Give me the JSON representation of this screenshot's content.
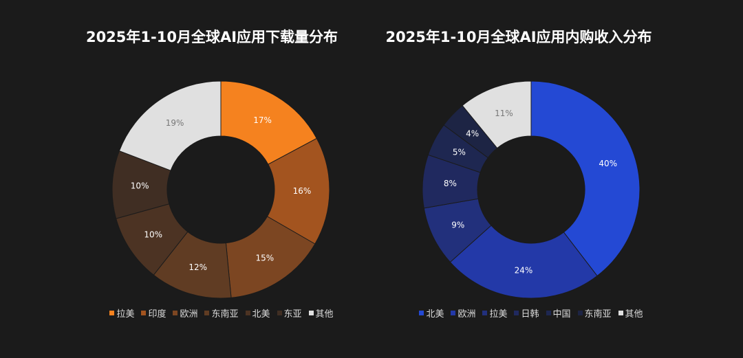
{
  "chart_data": [
    {
      "type": "pie",
      "title": "2025年1-10月全球AI应用下载量分布",
      "categories": [
        "拉美",
        "印度",
        "欧洲",
        "东南亚",
        "北美",
        "东亚",
        "其他"
      ],
      "values": [
        17,
        16,
        15,
        12,
        10,
        10,
        19
      ],
      "labels": [
        "17%",
        "16%",
        "15%",
        "12%",
        "10%",
        "10%",
        "19%"
      ],
      "colors": [
        "#F5821F",
        "#A3541F",
        "#7C4622",
        "#603C23",
        "#4C3323",
        "#402E23",
        "#E0E0E0"
      ],
      "label_colors": [
        "#fff",
        "#fff",
        "#fff",
        "#fff",
        "#fff",
        "#fff",
        "#777"
      ],
      "legend": "bottom"
    },
    {
      "type": "pie",
      "title": "2025年1-10月全球AI应用内购收入分布",
      "categories": [
        "北美",
        "欧洲",
        "拉美",
        "日韩",
        "中国",
        "东南亚",
        "其他"
      ],
      "values": [
        40,
        24,
        9,
        8,
        5,
        4,
        11
      ],
      "labels": [
        "40%",
        "24%",
        "9%",
        "8%",
        "5%",
        "4%",
        "11%"
      ],
      "colors": [
        "#2449D4",
        "#2339A8",
        "#22307C",
        "#20295F",
        "#1E2751",
        "#1D2444",
        "#E0E0E0"
      ],
      "label_colors": [
        "#fff",
        "#fff",
        "#fff",
        "#fff",
        "#fff",
        "#fff",
        "#777"
      ],
      "legend": "bottom"
    }
  ]
}
